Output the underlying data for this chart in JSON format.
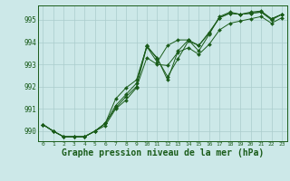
{
  "bg_color": "#cce8e8",
  "grid_color": "#aacccc",
  "line_color": "#1a5c1a",
  "marker_color": "#1a5c1a",
  "xlabel": "Graphe pression niveau de la mer (hPa)",
  "xlabel_fontsize": 7,
  "ylabel_values": [
    990,
    991,
    992,
    993,
    994,
    995
  ],
  "xlim": [
    -0.5,
    23.5
  ],
  "ylim": [
    989.55,
    995.65
  ],
  "x": [
    0,
    1,
    2,
    3,
    4,
    5,
    6,
    7,
    8,
    9,
    10,
    11,
    12,
    13,
    14,
    15,
    16,
    17,
    18,
    19,
    20,
    21,
    22,
    23
  ],
  "series1": [
    990.3,
    990.0,
    989.75,
    989.75,
    989.75,
    990.0,
    990.35,
    991.05,
    991.55,
    992.0,
    993.8,
    993.1,
    993.85,
    994.1,
    994.1,
    993.6,
    994.35,
    995.15,
    995.35,
    995.25,
    995.35,
    995.4,
    995.05,
    995.25
  ],
  "series2": [
    990.3,
    990.0,
    989.75,
    989.75,
    989.75,
    990.0,
    990.35,
    991.15,
    991.65,
    992.15,
    993.85,
    993.25,
    992.45,
    993.25,
    994.05,
    993.85,
    994.45,
    995.1,
    995.3,
    995.25,
    995.3,
    995.35,
    995.05,
    995.25
  ],
  "series3": [
    990.3,
    990.0,
    989.75,
    989.75,
    989.75,
    990.0,
    990.35,
    991.45,
    991.95,
    992.3,
    993.8,
    993.3,
    992.3,
    993.6,
    994.1,
    993.85,
    994.4,
    995.1,
    995.3,
    995.25,
    995.3,
    995.35,
    995.0,
    995.25
  ],
  "series4": [
    990.3,
    990.0,
    989.75,
    989.75,
    989.75,
    990.0,
    990.25,
    991.0,
    991.4,
    991.95,
    993.3,
    993.0,
    992.95,
    993.55,
    993.75,
    993.45,
    993.9,
    994.55,
    994.85,
    994.95,
    995.05,
    995.15,
    994.85,
    995.1
  ]
}
